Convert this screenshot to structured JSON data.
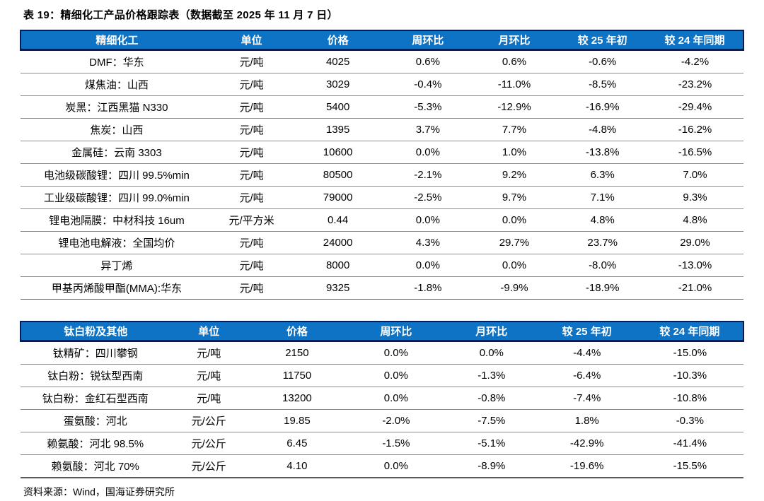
{
  "title": "表 19：精细化工产品价格跟踪表（数据截至 2025 年 11 月 7 日）",
  "source_note": "资料来源：Wind，国海证券研究所",
  "colors": {
    "header_bg": "#0E72C5",
    "header_border": "#0D1B55",
    "row_separator": "#8A8A8A",
    "header_text": "#FFFFFF",
    "body_text": "#000000"
  },
  "tables": [
    {
      "name": "fine-chemicals",
      "headers": [
        "精细化工",
        "单位",
        "价格",
        "周环比",
        "月环比",
        "较 25 年初",
        "较 24 年同期"
      ],
      "rows": [
        [
          "DMF：华东",
          "元/吨",
          "4025",
          "0.6%",
          "0.6%",
          "-0.6%",
          "-4.2%"
        ],
        [
          "煤焦油：山西",
          "元/吨",
          "3029",
          "-0.4%",
          "-11.0%",
          "-8.5%",
          "-23.2%"
        ],
        [
          "炭黑：江西黑猫 N330",
          "元/吨",
          "5400",
          "-5.3%",
          "-12.9%",
          "-16.9%",
          "-29.4%"
        ],
        [
          "焦炭：山西",
          "元/吨",
          "1395",
          "3.7%",
          "7.7%",
          "-4.8%",
          "-16.2%"
        ],
        [
          "金属硅：云南 3303",
          "元/吨",
          "10600",
          "0.0%",
          "1.0%",
          "-13.8%",
          "-16.5%"
        ],
        [
          "电池级碳酸锂：四川 99.5%min",
          "元/吨",
          "80500",
          "-2.1%",
          "9.2%",
          "6.3%",
          "7.0%"
        ],
        [
          "工业级碳酸锂：四川 99.0%min",
          "元/吨",
          "79000",
          "-2.5%",
          "9.7%",
          "7.1%",
          "9.3%"
        ],
        [
          "锂电池隔膜：中材科技 16um",
          "元/平方米",
          "0.44",
          "0.0%",
          "0.0%",
          "4.8%",
          "4.8%"
        ],
        [
          "锂电池电解液：全国均价",
          "元/吨",
          "24000",
          "4.3%",
          "29.7%",
          "23.7%",
          "29.0%"
        ],
        [
          "异丁烯",
          "元/吨",
          "8000",
          "0.0%",
          "0.0%",
          "-8.0%",
          "-13.0%"
        ],
        [
          "甲基丙烯酸甲酯(MMA):华东",
          "元/吨",
          "9325",
          "-1.8%",
          "-9.9%",
          "-18.9%",
          "-21.0%"
        ]
      ]
    },
    {
      "name": "titanium-and-others",
      "headers": [
        "钛白粉及其他",
        "单位",
        "价格",
        "周环比",
        "月环比",
        "较 25 年初",
        "较 24 年同期"
      ],
      "rows": [
        [
          "钛精矿：四川攀钢",
          "元/吨",
          "2150",
          "0.0%",
          "0.0%",
          "-4.4%",
          "-15.0%"
        ],
        [
          "钛白粉：锐钛型西南",
          "元/吨",
          "11750",
          "0.0%",
          "-1.3%",
          "-6.4%",
          "-10.3%"
        ],
        [
          "钛白粉：金红石型西南",
          "元/吨",
          "13200",
          "0.0%",
          "-0.8%",
          "-7.4%",
          "-10.8%"
        ],
        [
          "蛋氨酸：河北",
          "元/公斤",
          "19.85",
          "-2.0%",
          "-7.5%",
          "1.8%",
          "-0.3%"
        ],
        [
          "赖氨酸：河北 98.5%",
          "元/公斤",
          "6.45",
          "-1.5%",
          "-5.1%",
          "-42.9%",
          "-41.4%"
        ],
        [
          "赖氨酸：河北 70%",
          "元/公斤",
          "4.10",
          "0.0%",
          "-8.9%",
          "-19.6%",
          "-15.5%"
        ]
      ]
    }
  ]
}
